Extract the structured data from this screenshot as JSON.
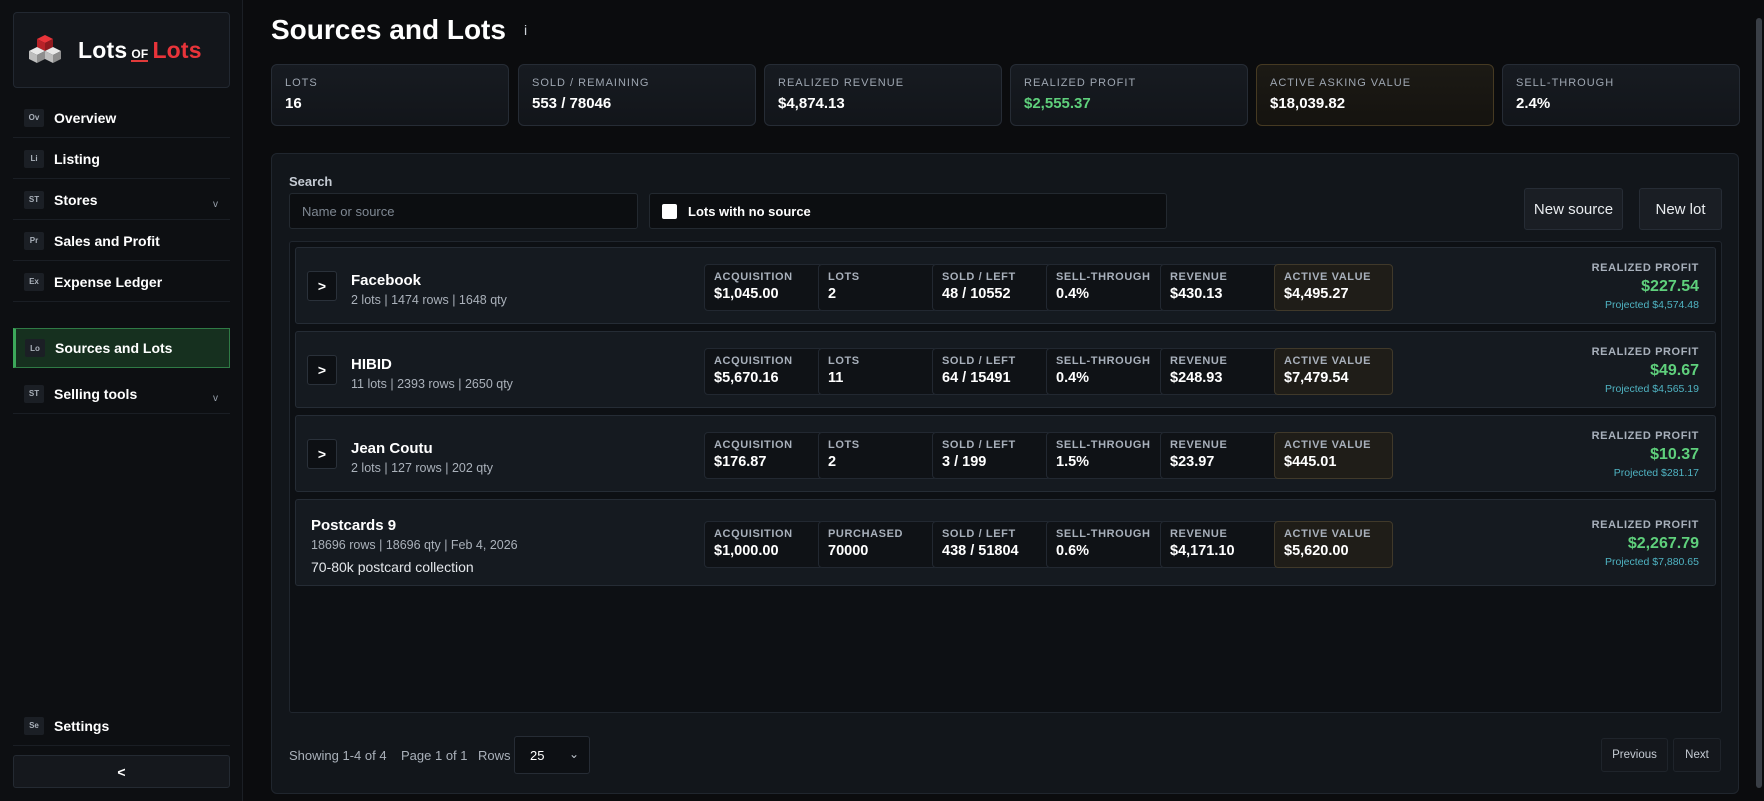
{
  "app": {
    "logo": {
      "word1": "Lots",
      "of": "OF",
      "word2": "Lots"
    }
  },
  "sidebar": {
    "items": [
      {
        "abbr": "Ov",
        "label": "Overview"
      },
      {
        "abbr": "Li",
        "label": "Listing"
      },
      {
        "abbr": "ST",
        "label": "Stores",
        "chevron": "v"
      },
      {
        "abbr": "Pr",
        "label": "Sales and Profit"
      },
      {
        "abbr": "Ex",
        "label": "Expense Ledger"
      },
      {
        "abbr": "Lo",
        "label": "Sources and Lots",
        "active": true
      },
      {
        "abbr": "ST",
        "label": "Selling tools",
        "chevron": "v"
      }
    ],
    "settings": {
      "abbr": "Se",
      "label": "Settings"
    },
    "collapse_label": "<"
  },
  "header": {
    "title": "Sources and Lots",
    "info": "i"
  },
  "stats": [
    {
      "label": "LOTS",
      "value": "16"
    },
    {
      "label": "SOLD / REMAINING",
      "value": "553 / 78046"
    },
    {
      "label": "REALIZED REVENUE",
      "value": "$4,874.13"
    },
    {
      "label": "REALIZED PROFIT",
      "value": "$2,555.37",
      "color": "#5fd07c"
    },
    {
      "label": "ACTIVE ASKING VALUE",
      "value": "$18,039.82",
      "highlight": true
    },
    {
      "label": "SELL-THROUGH",
      "value": "2.4%"
    }
  ],
  "filters": {
    "search_label": "Search",
    "search_placeholder": "Name or source",
    "search_value": "",
    "checkbox_label": "Lots with no source",
    "new_source": "New source",
    "new_lot": "New lot"
  },
  "rows": [
    {
      "name": "Facebook",
      "meta": "2 lots | 1474 rows | 1648 qty",
      "expand": ">",
      "metrics": [
        {
          "label": "ACQUISITION",
          "value": "$1,045.00"
        },
        {
          "label": "LOTS",
          "value": "2"
        },
        {
          "label": "SOLD / LEFT",
          "value": "48 / 10552"
        },
        {
          "label": "SELL-THROUGH",
          "value": "0.4%"
        },
        {
          "label": "REVENUE",
          "value": "$430.13"
        },
        {
          "label": "ACTIVE VALUE",
          "value": "$4,495.27"
        }
      ],
      "profit_label": "REALIZED PROFIT",
      "profit": "$227.54",
      "projected": "Projected $4,574.48"
    },
    {
      "name": "HIBID",
      "meta": "11 lots | 2393 rows | 2650 qty",
      "expand": ">",
      "metrics": [
        {
          "label": "ACQUISITION",
          "value": "$5,670.16"
        },
        {
          "label": "LOTS",
          "value": "11"
        },
        {
          "label": "SOLD / LEFT",
          "value": "64 / 15491"
        },
        {
          "label": "SELL-THROUGH",
          "value": "0.4%"
        },
        {
          "label": "REVENUE",
          "value": "$248.93"
        },
        {
          "label": "ACTIVE VALUE",
          "value": "$7,479.54"
        }
      ],
      "profit_label": "REALIZED PROFIT",
      "profit": "$49.67",
      "projected": "Projected $4,565.19"
    },
    {
      "name": "Jean Coutu",
      "meta": "2 lots | 127 rows | 202 qty",
      "expand": ">",
      "metrics": [
        {
          "label": "ACQUISITION",
          "value": "$176.87"
        },
        {
          "label": "LOTS",
          "value": "2"
        },
        {
          "label": "SOLD / LEFT",
          "value": "3 / 199"
        },
        {
          "label": "SELL-THROUGH",
          "value": "1.5%"
        },
        {
          "label": "REVENUE",
          "value": "$23.97"
        },
        {
          "label": "ACTIVE VALUE",
          "value": "$445.01"
        }
      ],
      "profit_label": "REALIZED PROFIT",
      "profit": "$10.37",
      "projected": "Projected $281.17"
    },
    {
      "name": "Postcards 9",
      "meta": "18696 rows | 18696 qty | Feb 4, 2026",
      "desc": "70-80k postcard collection",
      "metrics": [
        {
          "label": "ACQUISITION",
          "value": "$1,000.00"
        },
        {
          "label": "PURCHASED",
          "value": "70000"
        },
        {
          "label": "SOLD / LEFT",
          "value": "438 / 51804"
        },
        {
          "label": "SELL-THROUGH",
          "value": "0.6%"
        },
        {
          "label": "REVENUE",
          "value": "$4,171.10"
        },
        {
          "label": "ACTIVE VALUE",
          "value": "$5,620.00"
        }
      ],
      "profit_label": "REALIZED PROFIT",
      "profit": "$2,267.79",
      "projected": "Projected $7,880.65"
    }
  ],
  "pagination": {
    "showing": "Showing 1-4 of 4",
    "page": "Page 1 of 1",
    "rows_label": "Rows",
    "rows_value": "25",
    "previous": "Previous",
    "next": "Next"
  },
  "colors": {
    "accent_green": "#5fd07c",
    "brand_red": "#e8343a",
    "projected_cyan": "#4fb3c2"
  }
}
